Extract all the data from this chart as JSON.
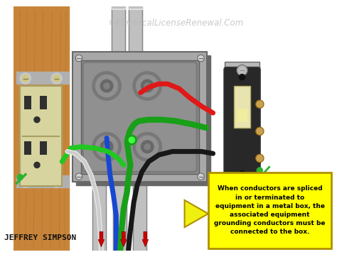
{
  "bg_color": "#ffffff",
  "wood_color": "#c8853a",
  "wood_dark": "#a06030",
  "wood_grain": "#b07030",
  "box_color": "#a8a8a8",
  "box_dark": "#686868",
  "box_light": "#d0d0d0",
  "box_inner": "#888888",
  "box_rim": "#999999",
  "conduit_color": "#c0c0c0",
  "conduit_dark": "#888888",
  "conduit_light": "#e0e0e0",
  "outlet_body": "#d8d4a0",
  "outlet_dark": "#a8a060",
  "outlet_slot": "#303030",
  "switch_plate": "#b8b8b8",
  "switch_body": "#282828",
  "switch_toggle": "#e8e4b0",
  "switch_screw": "#c8a050",
  "wire_red": "#e01818",
  "wire_black": "#181818",
  "wire_white": "#e8e8e8",
  "wire_green": "#18a018",
  "wire_blue": "#1848d0",
  "wire_green_bright": "#20c820",
  "green_dot": "#40ff40",
  "arrow_fill": "#f0f010",
  "arrow_border": "#b09000",
  "callout_bg": "#ffff00",
  "callout_border": "#b09000",
  "callout_text": "#000000",
  "red_arrow": "#cc0000",
  "green_screw": "#30b030",
  "watermark_color": "#b8b8b8",
  "watermark_text": "©ElectricalLicenseRenewal.Com",
  "callout_lines": [
    "When conductors are spliced",
    "in or terminated to",
    "equipment in a metal box, the",
    "associated equipment",
    "grounding conductors must be",
    "connected to the box."
  ],
  "author_text": "Jeffrey Simpson"
}
